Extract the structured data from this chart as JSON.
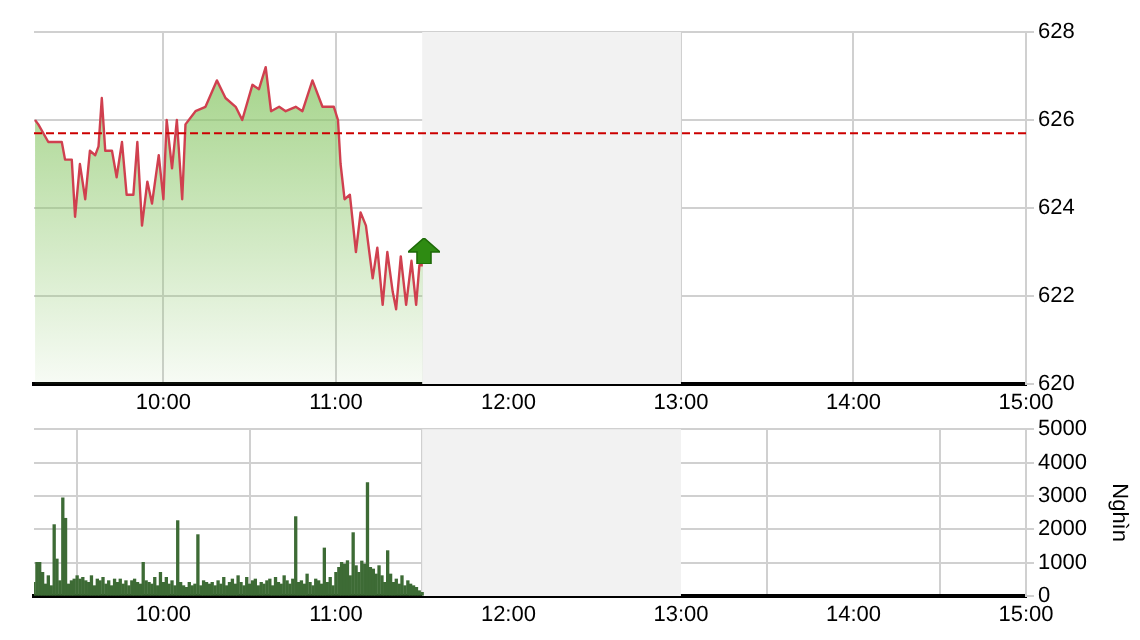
{
  "chart_data": [
    {
      "type": "area",
      "x": [
        9.256,
        9.275,
        9.333,
        9.372,
        9.411,
        9.43,
        9.469,
        9.488,
        9.516,
        9.547,
        9.574,
        9.605,
        9.624,
        9.643,
        9.663,
        9.702,
        9.729,
        9.76,
        9.787,
        9.826,
        9.849,
        9.876,
        9.907,
        9.934,
        9.973,
        10.0,
        10.019,
        10.05,
        10.078,
        10.109,
        10.128,
        10.186,
        10.244,
        10.31,
        10.36,
        10.419,
        10.457,
        10.516,
        10.554,
        10.593,
        10.624,
        10.671,
        10.709,
        10.767,
        10.806,
        10.864,
        10.922,
        10.988,
        11.012,
        11.027,
        11.05,
        11.081,
        11.116,
        11.143,
        11.174,
        11.213,
        11.24,
        11.271,
        11.298,
        11.329,
        11.349,
        11.376,
        11.407,
        11.438,
        11.465,
        11.484,
        11.504
      ],
      "series": [
        {
          "color": "#d0404f",
          "values": [
            626.0,
            625.9,
            625.5,
            625.5,
            625.5,
            625.1,
            625.1,
            623.8,
            625.0,
            624.2,
            625.3,
            625.2,
            625.4,
            626.5,
            625.3,
            625.3,
            624.7,
            625.5,
            624.3,
            624.3,
            625.5,
            623.6,
            624.6,
            624.1,
            625.2,
            624.2,
            626.0,
            624.9,
            626.0,
            624.2,
            625.9,
            626.2,
            626.3,
            626.9,
            626.5,
            626.3,
            626.0,
            626.8,
            626.7,
            627.2,
            626.2,
            626.3,
            626.2,
            626.3,
            626.2,
            626.9,
            626.3,
            626.3,
            626.0,
            625.0,
            624.2,
            624.3,
            623.0,
            623.9,
            623.6,
            622.4,
            623.1,
            621.8,
            623.0,
            622.1,
            621.7,
            622.9,
            621.8,
            622.8,
            621.8,
            622.7,
            622.7
          ]
        }
      ],
      "xlim": [
        9.25,
        15
      ],
      "xticks": [
        {
          "value": 10,
          "label": "10:00"
        },
        {
          "value": 11,
          "label": "11:00"
        },
        {
          "value": 12,
          "label": "12:00"
        },
        {
          "value": 13,
          "label": "13:00"
        },
        {
          "value": 14,
          "label": "14:00"
        },
        {
          "value": 15,
          "label": "15:00"
        }
      ],
      "ylim": [
        620,
        628
      ],
      "yticks": [
        620,
        622,
        624,
        626,
        628
      ],
      "grid": true,
      "ref_lines": [
        {
          "axis": "y",
          "value": 625.7,
          "color": "#cc0000",
          "line_style": "dashed"
        }
      ],
      "bands": [
        {
          "axis": "x",
          "from": 11.5,
          "to": 13,
          "color": "#f2f2f2"
        }
      ]
    },
    {
      "type": "bar",
      "ylabel": "Nghìn",
      "color": "#3d6b35",
      "x": [
        9.25,
        9.267,
        9.283,
        9.3,
        9.317,
        9.333,
        9.35,
        9.367,
        9.383,
        9.4,
        9.417,
        9.433,
        9.45,
        9.467,
        9.483,
        9.5,
        9.517,
        9.533,
        9.55,
        9.567,
        9.583,
        9.6,
        9.617,
        9.633,
        9.65,
        9.667,
        9.683,
        9.7,
        9.717,
        9.733,
        9.75,
        9.767,
        9.783,
        9.8,
        9.817,
        9.833,
        9.85,
        9.867,
        9.883,
        9.9,
        9.917,
        9.933,
        9.95,
        9.967,
        9.983,
        10.0,
        10.017,
        10.033,
        10.05,
        10.067,
        10.083,
        10.1,
        10.117,
        10.133,
        10.15,
        10.167,
        10.183,
        10.2,
        10.217,
        10.233,
        10.25,
        10.267,
        10.283,
        10.3,
        10.317,
        10.333,
        10.35,
        10.367,
        10.383,
        10.4,
        10.417,
        10.433,
        10.45,
        10.467,
        10.483,
        10.5,
        10.517,
        10.533,
        10.55,
        10.567,
        10.583,
        10.6,
        10.617,
        10.633,
        10.65,
        10.667,
        10.683,
        10.7,
        10.717,
        10.733,
        10.75,
        10.767,
        10.783,
        10.8,
        10.817,
        10.833,
        10.85,
        10.867,
        10.883,
        10.9,
        10.917,
        10.933,
        10.95,
        10.967,
        10.983,
        11.0,
        11.017,
        11.033,
        11.05,
        11.067,
        11.083,
        11.1,
        11.117,
        11.133,
        11.15,
        11.167,
        11.183,
        11.2,
        11.217,
        11.233,
        11.25,
        11.267,
        11.283,
        11.3,
        11.317,
        11.333,
        11.35,
        11.367,
        11.383,
        11.4,
        11.417,
        11.433,
        11.45,
        11.467,
        11.483,
        11.5
      ],
      "values": [
        400,
        1000,
        1000,
        700,
        350,
        600,
        300,
        2130,
        1100,
        450,
        2930,
        2320,
        350,
        450,
        500,
        600,
        500,
        550,
        450,
        400,
        600,
        300,
        500,
        450,
        550,
        350,
        450,
        300,
        500,
        400,
        500,
        350,
        450,
        300,
        450,
        500,
        400,
        350,
        1000,
        450,
        400,
        350,
        550,
        300,
        700,
        400,
        550,
        350,
        450,
        300,
        2250,
        400,
        300,
        250,
        400,
        300,
        350,
        1830,
        300,
        450,
        400,
        350,
        400,
        300,
        450,
        350,
        550,
        300,
        400,
        500,
        350,
        600,
        400,
        300,
        550,
        350,
        450,
        500,
        300,
        400,
        350,
        450,
        500,
        300,
        550,
        400,
        350,
        600,
        450,
        350,
        500,
        2370,
        400,
        450,
        350,
        650,
        400,
        300,
        500,
        450,
        350,
        1430,
        400,
        550,
        300,
        700,
        850,
        1000,
        950,
        1050,
        600,
        1890,
        900,
        700,
        1040,
        950,
        3390,
        850,
        800,
        650,
        900,
        600,
        400,
        1350,
        650,
        400,
        500,
        350,
        600,
        300,
        450,
        350,
        300,
        250,
        150,
        100
      ],
      "xlim": [
        9.25,
        15
      ],
      "xticks": [
        {
          "value": 10,
          "label": "10:00"
        },
        {
          "value": 11,
          "label": "11:00"
        },
        {
          "value": 12,
          "label": "12:00"
        },
        {
          "value": 13,
          "label": "13:00"
        },
        {
          "value": 14,
          "label": "14:00"
        },
        {
          "value": 15,
          "label": "15:00"
        }
      ],
      "ylim": [
        0,
        5000
      ],
      "yticks": [
        0,
        1000,
        2000,
        3000,
        4000,
        5000
      ],
      "grid": true,
      "bands": [
        {
          "axis": "x",
          "from": 11.5,
          "to": 13,
          "color": "#f2f2f2"
        }
      ]
    }
  ]
}
